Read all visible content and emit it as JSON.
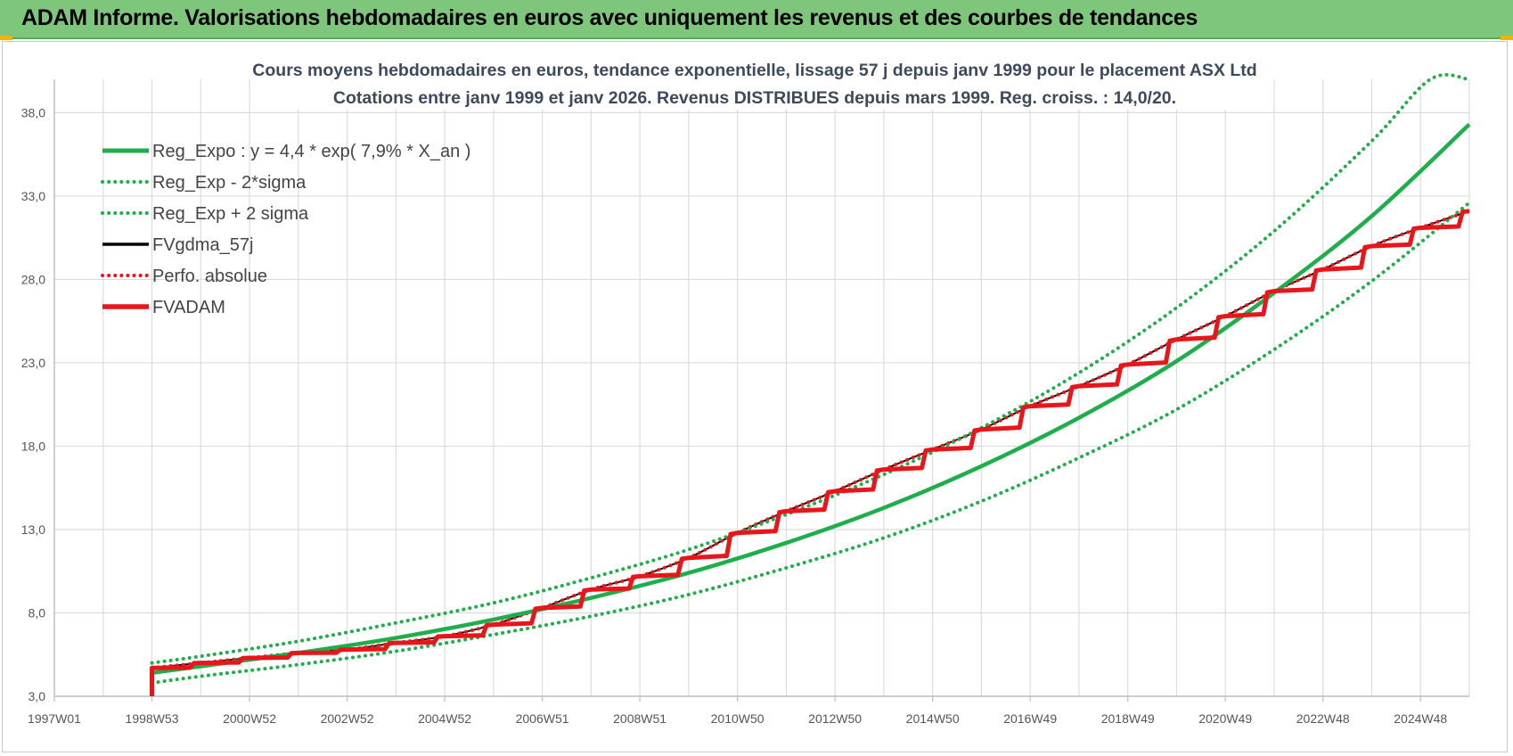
{
  "banner": {
    "title": "ADAM Informe. Valorisations hebdomadaires en euros avec uniquement les revenus et des courbes de tendances"
  },
  "colors": {
    "banner_bg": "#7dc67b",
    "trend_green": "#1fae4b",
    "fvadam_red": "#e8161b",
    "gdma_black": "#000000",
    "grid": "#dcdcdc"
  },
  "chart_data": {
    "type": "line",
    "title": "Cours moyens hebdomadaires en euros, tendance exponentielle, lissage 57 j depuis janv 1999  pour le placement ASX Ltd",
    "subtitle": "Cotations entre janv 1999 et janv 2026. Revenus DISTRIBUES depuis mars 1999.  Reg. croiss. : 14,0/20.",
    "xlabel": "",
    "ylabel": "",
    "x_tick_labels": [
      "1997W01",
      "1998W53",
      "2000W52",
      "2002W52",
      "2004W52",
      "2006W51",
      "2008W51",
      "2010W50",
      "2012W50",
      "2014W50",
      "2016W49",
      "2018W49",
      "2020W49",
      "2022W48",
      "2024W48"
    ],
    "x_range_years": [
      1997.0,
      2026.0
    ],
    "y_tick_labels": [
      "3,0",
      "8,0",
      "13,0",
      "18,0",
      "23,0",
      "28,0",
      "33,0",
      "38,0"
    ],
    "ylim": [
      3.0,
      40.0
    ],
    "grid": true,
    "legend_position": "top-left",
    "series": [
      {
        "name": "Reg_Expo : y = 4,4 * exp( 7,9% *  X_an )",
        "style": "solid-thick",
        "color": "#1fae4b",
        "x": [
          1999,
          2000,
          2002,
          2004,
          2006,
          2008,
          2010,
          2012,
          2014,
          2016,
          2018,
          2020,
          2022,
          2024,
          2026
        ],
        "y": [
          4.4,
          4.8,
          5.6,
          6.5,
          7.6,
          8.9,
          10.4,
          12.2,
          14.3,
          16.8,
          19.7,
          23.1,
          27.2,
          31.8,
          37.3
        ]
      },
      {
        "name": "Reg_Exp - 2*sigma",
        "style": "dotted",
        "color": "#1fae4b",
        "x": [
          1999,
          2000,
          2002,
          2004,
          2006,
          2008,
          2010,
          2012,
          2014,
          2016,
          2018,
          2020,
          2022,
          2024,
          2026
        ],
        "y": [
          3.8,
          4.2,
          4.9,
          5.7,
          6.7,
          7.8,
          9.1,
          10.7,
          12.5,
          14.7,
          17.3,
          20.2,
          23.8,
          27.9,
          32.6
        ]
      },
      {
        "name": "Reg_Exp + 2 sigma",
        "style": "dotted",
        "color": "#1fae4b",
        "x": [
          1999,
          2000,
          2002,
          2004,
          2006,
          2008,
          2010,
          2012,
          2014,
          2016,
          2018,
          2020,
          2022,
          2024,
          2025.2,
          2026
        ],
        "y": [
          5.0,
          5.4,
          6.3,
          7.4,
          8.6,
          10.1,
          11.8,
          13.9,
          16.3,
          19.1,
          22.4,
          26.3,
          30.9,
          36.3,
          40.0,
          40.0
        ]
      },
      {
        "name": "FVgdma_57j",
        "style": "solid-thin",
        "color": "#000000",
        "x": [
          1999,
          2000,
          2001,
          2002,
          2003,
          2004,
          2005,
          2006,
          2007,
          2008,
          2009,
          2010,
          2011,
          2012,
          2013,
          2014,
          2015,
          2016,
          2017,
          2018,
          2019,
          2020,
          2021,
          2022,
          2023,
          2024,
          2025,
          2026
        ],
        "y": [
          4.7,
          5.0,
          5.3,
          5.6,
          5.8,
          6.2,
          6.6,
          7.3,
          8.3,
          9.4,
          10.2,
          11.3,
          12.8,
          14.1,
          15.3,
          16.6,
          17.8,
          19.0,
          20.4,
          21.6,
          22.9,
          24.4,
          25.8,
          27.3,
          28.6,
          30.0,
          31.1,
          32.1
        ]
      },
      {
        "name": "Perfo. absolue",
        "style": "dotted",
        "color": "#e8161b",
        "x": [
          1999,
          2000,
          2001,
          2002,
          2003,
          2004,
          2005,
          2006,
          2007,
          2008,
          2009,
          2010,
          2011,
          2012,
          2013,
          2014,
          2015,
          2016,
          2017,
          2018,
          2019,
          2020,
          2021,
          2022,
          2023,
          2024,
          2025,
          2026
        ],
        "y": [
          4.7,
          5.0,
          5.3,
          5.6,
          5.8,
          6.2,
          6.6,
          7.3,
          8.3,
          9.4,
          10.2,
          11.3,
          12.8,
          14.1,
          15.3,
          16.6,
          17.8,
          19.0,
          20.4,
          21.6,
          22.9,
          24.4,
          25.8,
          27.3,
          28.6,
          30.0,
          31.1,
          32.1
        ]
      },
      {
        "name": "FVADAM",
        "style": "step-thick",
        "color": "#e8161b",
        "x": [
          1999.0,
          1999.0,
          2000.0,
          2001.0,
          2002.0,
          2003.0,
          2004.0,
          2005.0,
          2006.0,
          2007.0,
          2008.0,
          2009.0,
          2010.0,
          2011.0,
          2012.0,
          2013.0,
          2014.0,
          2015.0,
          2016.0,
          2017.0,
          2018.0,
          2019.0,
          2020.0,
          2021.0,
          2022.0,
          2023.0,
          2024.0,
          2025.0,
          2026.0
        ],
        "y": [
          3.0,
          4.7,
          5.0,
          5.3,
          5.6,
          5.8,
          6.2,
          6.6,
          7.3,
          8.3,
          9.4,
          10.2,
          11.3,
          12.8,
          14.1,
          15.3,
          16.6,
          17.8,
          19.0,
          20.4,
          21.6,
          22.9,
          24.4,
          25.8,
          27.3,
          28.6,
          30.0,
          31.1,
          32.1
        ]
      }
    ]
  }
}
